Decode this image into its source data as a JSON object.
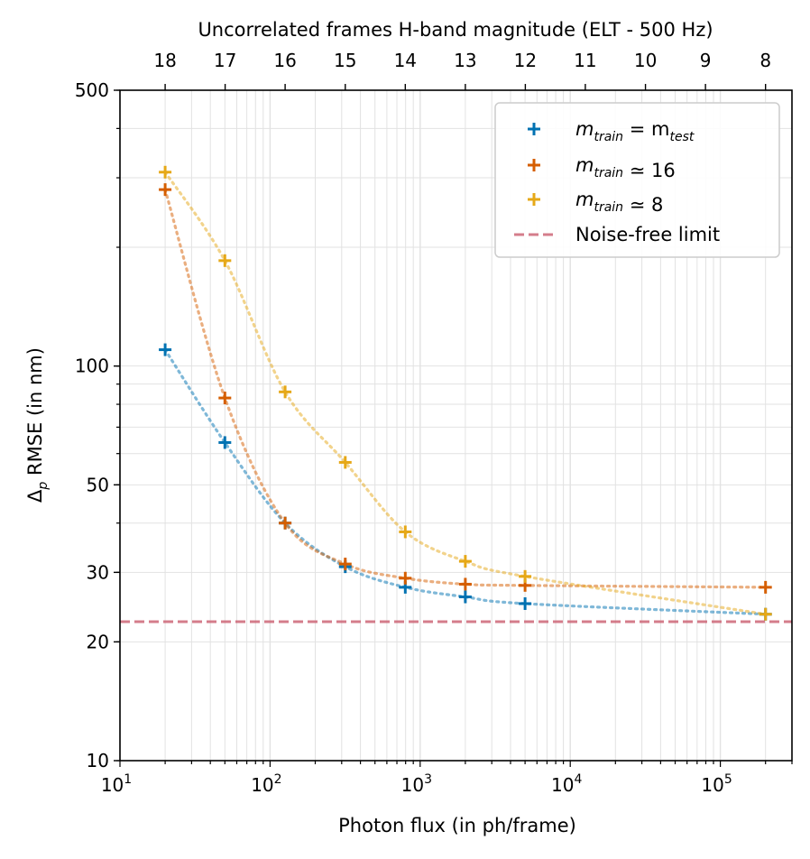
{
  "chart_data": {
    "type": "scatter",
    "title": "",
    "xlabel": "Photon flux (in ph/frame)",
    "ylabel": "Δp RMSE (in nm)",
    "x_scale": "log",
    "y_scale": "log",
    "xlim": [
      10,
      300000
    ],
    "ylim": [
      10,
      500
    ],
    "x_ticks": [
      {
        "value": 10,
        "base": "10",
        "exp": "1"
      },
      {
        "value": 100,
        "base": "10",
        "exp": "2"
      },
      {
        "value": 1000,
        "base": "10",
        "exp": "3"
      },
      {
        "value": 10000,
        "base": "10",
        "exp": "4"
      },
      {
        "value": 100000,
        "base": "10",
        "exp": "5"
      }
    ],
    "y_ticks": [
      {
        "value": 10,
        "label": "10"
      },
      {
        "value": 20,
        "label": "20"
      },
      {
        "value": 30,
        "label": "30"
      },
      {
        "value": 50,
        "label": "50"
      },
      {
        "value": 100,
        "label": "100"
      },
      {
        "value": 500,
        "label": "500"
      }
    ],
    "grid": true,
    "secondary_x_axis": {
      "label": "Uncorrelated frames H-band magnitude (ELT - 500 Hz)",
      "ticks": [
        {
          "label": "18",
          "value": 20
        },
        {
          "label": "17",
          "value": 50.2
        },
        {
          "label": "16",
          "value": 126
        },
        {
          "label": "15",
          "value": 317
        },
        {
          "label": "14",
          "value": 796
        },
        {
          "label": "13",
          "value": 2000
        },
        {
          "label": "12",
          "value": 5020
        },
        {
          "label": "11",
          "value": 12600
        },
        {
          "label": "10",
          "value": 31700
        },
        {
          "label": "9",
          "value": 79600
        },
        {
          "label": "8",
          "value": 200000
        }
      ]
    },
    "series": [
      {
        "name_main": "m",
        "name_sub": "train",
        "name_rel": " = m",
        "name_sub2": "test",
        "name_tail": "",
        "color": "#0072B2",
        "x": [
          20,
          50,
          126,
          317,
          796,
          2000,
          5000,
          200000
        ],
        "y": [
          110,
          64,
          40,
          31,
          27.5,
          26,
          25,
          23.5
        ]
      },
      {
        "name_main": "m",
        "name_sub": "train",
        "name_rel": "",
        "name_sub2": "",
        "name_tail": " ≃ 16",
        "color": "#D55E00",
        "x": [
          20,
          50,
          126,
          317,
          796,
          2000,
          5000,
          200000
        ],
        "y": [
          280,
          83,
          40,
          31.5,
          29,
          28,
          27.8,
          27.5
        ]
      },
      {
        "name_main": "m",
        "name_sub": "train",
        "name_rel": "",
        "name_sub2": "",
        "name_tail": " ≃ 8",
        "color": "#E6A817",
        "x": [
          20,
          50,
          126,
          317,
          796,
          2000,
          5000,
          200000
        ],
        "y": [
          310,
          185,
          86,
          57,
          38,
          32,
          29.3,
          23.5
        ]
      }
    ],
    "reference_line": {
      "name": "Noise-free limit",
      "y": 22.5,
      "color": "#CC6677",
      "style": "dashed"
    },
    "legend_position": "top-right"
  }
}
